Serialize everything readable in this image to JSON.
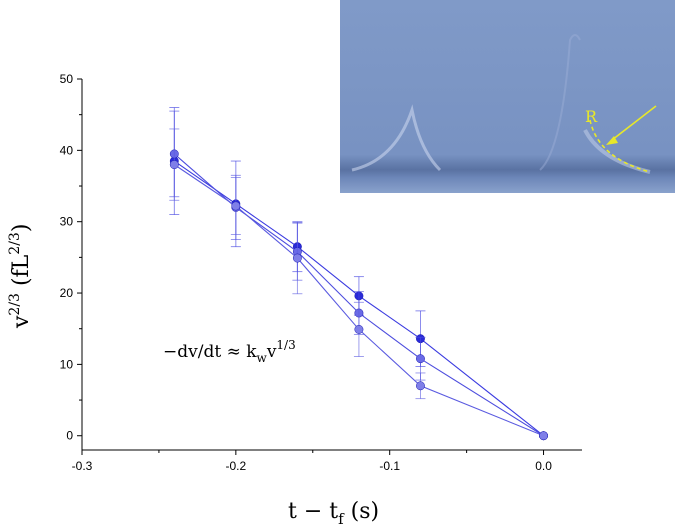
{
  "chart_data": {
    "type": "scatter",
    "xlabel": {
      "base": "t − t",
      "sub": "f",
      "tail": " (s)"
    },
    "ylabel": {
      "base": "v",
      "sup": "2/3",
      "mid": " (fL",
      "sup2": "2/3",
      "tail": ")"
    },
    "xlim": [
      -0.3,
      0.025
    ],
    "ylim": [
      -2,
      50
    ],
    "xticks": [
      -0.3,
      -0.2,
      -0.1,
      0.0
    ],
    "xtick_labels": [
      "-0.3",
      "-0.2",
      "-0.1",
      "0.0"
    ],
    "yticks": [
      0,
      10,
      20,
      30,
      40,
      50
    ],
    "ytick_labels": [
      "0",
      "10",
      "20",
      "30",
      "40",
      "50"
    ],
    "grid": false,
    "annotation": {
      "text": "−dv/dt ≈ k",
      "sub": "w",
      "mid": "v",
      "sup": "1/3"
    },
    "series": [
      {
        "color": "#3a3ae0",
        "marker_color": "#2a2ad8",
        "x": [
          -0.24,
          -0.2,
          -0.16,
          -0.12,
          -0.08,
          0.0
        ],
        "y": [
          38.5,
          32.5,
          26.5,
          19.6,
          13.6,
          0
        ],
        "yerr": [
          7.5,
          6.0,
          3.5,
          2.7,
          3.9,
          0
        ]
      },
      {
        "color": "#4d4dde",
        "marker_color": "#6a6ae6",
        "x": [
          -0.24,
          -0.2,
          -0.16,
          -0.12,
          -0.08,
          0.0
        ],
        "y": [
          39.5,
          32.0,
          25.8,
          17.2,
          10.8,
          0
        ],
        "yerr": [
          6.0,
          4.5,
          4.0,
          3.0,
          3.0,
          0
        ]
      },
      {
        "color": "#5a5ae0",
        "marker_color": "#7f7fe8",
        "x": [
          -0.24,
          -0.2,
          -0.16,
          -0.12,
          -0.08,
          0.0
        ],
        "y": [
          38.0,
          32.2,
          24.9,
          14.9,
          7.0,
          0
        ],
        "yerr": [
          5.0,
          4.0,
          5.0,
          3.8,
          1.8,
          0
        ]
      }
    ]
  },
  "inset": {
    "label": "R",
    "bg_color": "#7f97c5",
    "arrow_color": "#e8e829"
  }
}
